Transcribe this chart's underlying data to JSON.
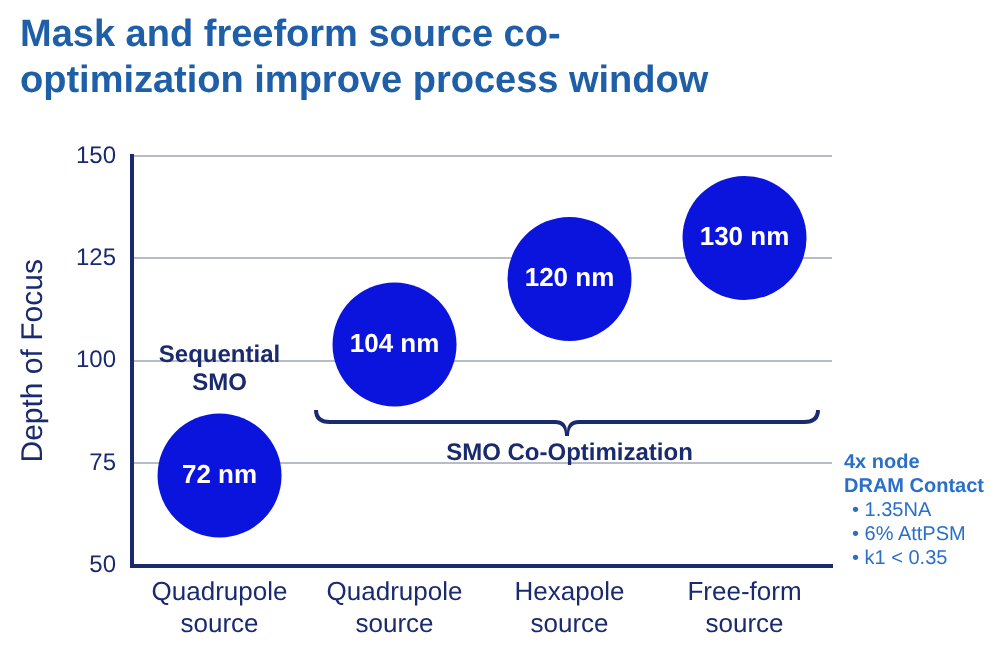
{
  "chart_data": {
    "type": "scatter",
    "title": "Mask and freeform source co-optimization improve process window",
    "ylabel": "Depth of Focus",
    "categories": [
      "Quadrupole source",
      "Quadrupole source",
      "Hexapole source",
      "Free-form source"
    ],
    "series": [
      {
        "color": "#0a14dc",
        "values": [
          72,
          104,
          120,
          130
        ],
        "value_labels": [
          "72 nm",
          "104 nm",
          "120 nm",
          "130 nm"
        ]
      }
    ],
    "ylim": [
      50,
      150
    ],
    "yticks": [
      50,
      75,
      100,
      125,
      150
    ],
    "grid": "y",
    "legend": false,
    "marker": "circle",
    "annotations": [
      "Sequential SMO",
      "SMO Co-Optimization",
      "4x node",
      "DRAM Contact",
      "• 1.35NA",
      "• 6% AttPSM",
      "• k1 < 0.35"
    ]
  }
}
